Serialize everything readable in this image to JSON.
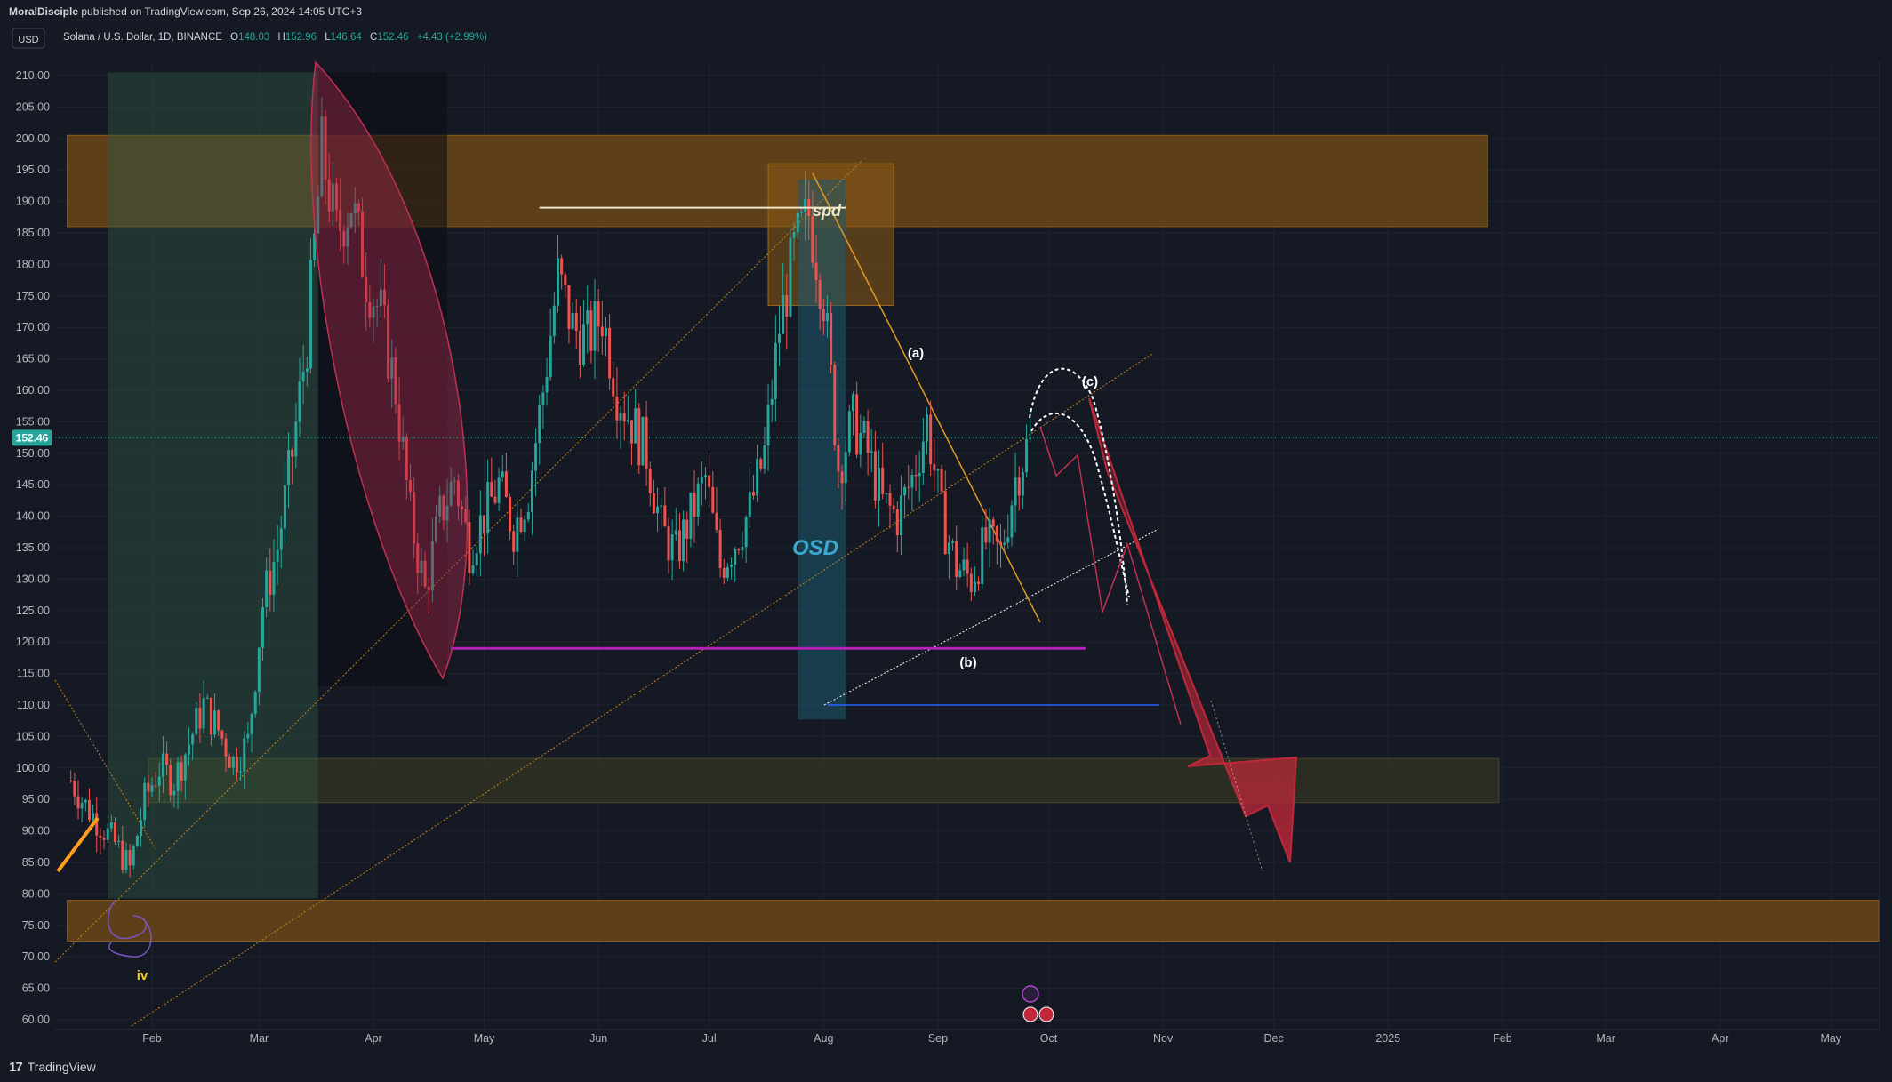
{
  "header": {
    "publisher": "MoralDisciple",
    "published_text": "published on TradingView.com, Sep 26, 2024 14:05 UTC+3"
  },
  "legend": {
    "currency_button": "USD",
    "symbol": "Solana / U.S. Dollar, 1D, BINANCE",
    "o_label": "O",
    "o_value": "148.03",
    "h_label": "H",
    "h_value": "152.96",
    "l_label": "L",
    "l_value": "146.64",
    "c_label": "C",
    "c_value": "152.46",
    "change": "+4.43 (+2.99%)"
  },
  "footer": {
    "logo_mark": "17",
    "logo_text": "TradingView"
  },
  "colors": {
    "background": "#151924",
    "up": "#26a69a",
    "down": "#ef5350",
    "zone_orange": "#8a5a14",
    "price_tag": "#26a69a",
    "purple_line": "#b620b8",
    "blue_line": "#2962ff",
    "osd_text": "#3ba8cf"
  },
  "chart_data": {
    "type": "candlestick",
    "title": "Solana / U.S. Dollar, 1D, BINANCE",
    "xlabel": "",
    "ylabel": "",
    "x_ticks": [
      "Feb",
      "Mar",
      "Apr",
      "May",
      "Jun",
      "Jul",
      "Aug",
      "Sep",
      "Oct",
      "Nov",
      "Dec",
      "2025",
      "Feb",
      "Mar",
      "Apr",
      "May"
    ],
    "x_tick_dates": [
      "2024-02-01",
      "2024-03-01",
      "2024-04-01",
      "2024-05-01",
      "2024-06-01",
      "2024-07-01",
      "2024-08-01",
      "2024-09-01",
      "2024-10-01",
      "2024-11-01",
      "2024-12-01",
      "2025-01-01",
      "2025-02-01",
      "2025-03-01",
      "2025-04-01",
      "2025-05-01"
    ],
    "y_ticks": [
      "210.00",
      "205.00",
      "200.00",
      "195.00",
      "190.00",
      "185.00",
      "180.00",
      "175.00",
      "170.00",
      "165.00",
      "160.00",
      "155.00",
      "150.00",
      "145.00",
      "140.00",
      "135.00",
      "130.00",
      "125.00",
      "120.00",
      "115.00",
      "110.00",
      "105.00",
      "100.00",
      "95.00",
      "90.00",
      "85.00",
      "80.00",
      "75.00",
      "70.00",
      "65.00",
      "60.00"
    ],
    "ylim": [
      58.5,
      212
    ],
    "xlim": [
      "2024-01-09",
      "2025-05-14"
    ],
    "last_price": 152.46,
    "last_price_label": "152.46",
    "series": [
      {
        "name": "Close",
        "x": [
          "2024-01-10",
          "2024-01-14",
          "2024-01-18",
          "2024-01-22",
          "2024-01-26",
          "2024-01-30",
          "2024-02-03",
          "2024-02-07",
          "2024-02-11",
          "2024-02-15",
          "2024-02-19",
          "2024-02-23",
          "2024-02-27",
          "2024-03-02",
          "2024-03-06",
          "2024-03-10",
          "2024-03-14",
          "2024-03-18",
          "2024-03-22",
          "2024-03-26",
          "2024-03-30",
          "2024-04-03",
          "2024-04-07",
          "2024-04-11",
          "2024-04-15",
          "2024-04-19",
          "2024-04-23",
          "2024-04-27",
          "2024-05-01",
          "2024-05-05",
          "2024-05-09",
          "2024-05-13",
          "2024-05-17",
          "2024-05-21",
          "2024-05-25",
          "2024-05-29",
          "2024-06-02",
          "2024-06-06",
          "2024-06-10",
          "2024-06-14",
          "2024-06-18",
          "2024-06-22",
          "2024-06-26",
          "2024-06-30",
          "2024-07-04",
          "2024-07-08",
          "2024-07-12",
          "2024-07-16",
          "2024-07-20",
          "2024-07-24",
          "2024-07-28",
          "2024-08-01",
          "2024-08-05",
          "2024-08-09",
          "2024-08-13",
          "2024-08-17",
          "2024-08-21",
          "2024-08-25",
          "2024-08-29",
          "2024-09-02",
          "2024-09-06",
          "2024-09-10",
          "2024-09-14",
          "2024-09-18",
          "2024-09-22",
          "2024-09-26"
        ],
        "values": [
          98,
          94,
          91,
          88,
          84,
          95,
          100,
          98,
          104,
          110,
          106,
          101,
          104,
          126,
          135,
          150,
          168,
          198,
          185,
          190,
          178,
          172,
          160,
          140,
          128,
          140,
          146,
          135,
          140,
          145,
          138,
          144,
          160,
          178,
          170,
          168,
          172,
          160,
          155,
          150,
          138,
          134,
          140,
          146,
          132,
          136,
          141,
          150,
          170,
          182,
          188,
          175,
          148,
          155,
          150,
          142,
          140,
          146,
          155,
          140,
          132,
          130,
          136,
          134,
          146,
          152.46
        ]
      }
    ],
    "zones": [
      {
        "name": "Resistance zone",
        "y": [
          186,
          200.5
        ],
        "x": [
          "2024-01-09",
          "2025-01-28"
        ]
      },
      {
        "name": "Support zone",
        "y": [
          94.5,
          101.5
        ],
        "x": [
          "2024-01-31",
          "2025-01-31"
        ]
      },
      {
        "name": "Low support zone",
        "y": [
          72.5,
          79
        ],
        "x": [
          "2024-01-09",
          "2025-05-14"
        ]
      }
    ],
    "horizontal_levels": [
      {
        "name": "spd high",
        "y": 189,
        "x": [
          "2024-05-16",
          "2024-08-07"
        ]
      },
      {
        "name": "neckline",
        "y": 119,
        "x": [
          "2024-04-22",
          "2024-10-11"
        ]
      },
      {
        "name": "low line",
        "y": 110,
        "x": [
          "2024-08-02",
          "2024-10-31"
        ]
      }
    ],
    "annotations": [
      "spd",
      "OSD",
      "(a)",
      "(b)",
      "(c)",
      "iv"
    ]
  }
}
